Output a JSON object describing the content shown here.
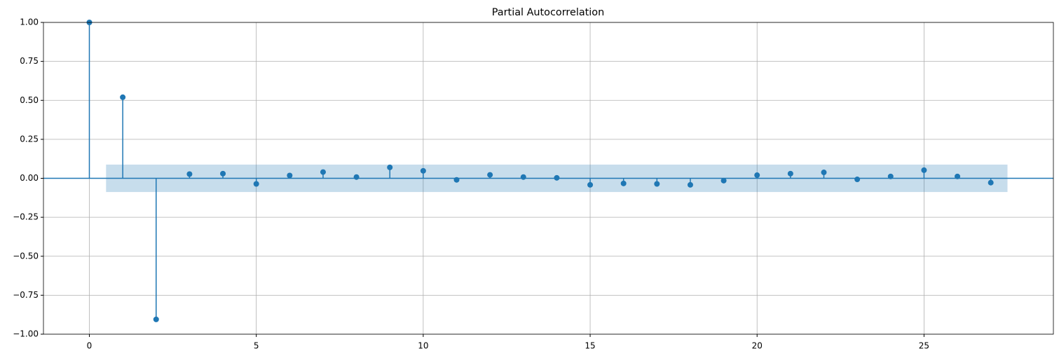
{
  "chart_data": {
    "type": "stem",
    "title": "Partial Autocorrelation",
    "x": [
      0,
      1,
      2,
      3,
      4,
      5,
      6,
      7,
      8,
      9,
      10,
      11,
      12,
      13,
      14,
      15,
      16,
      17,
      18,
      19,
      20,
      21,
      22,
      23,
      24,
      25,
      26,
      27
    ],
    "values": [
      1.0,
      0.52,
      -0.905,
      0.027,
      0.03,
      -0.036,
      0.018,
      0.04,
      0.008,
      0.07,
      0.048,
      -0.01,
      0.022,
      0.008,
      0.003,
      -0.042,
      -0.033,
      -0.036,
      -0.042,
      -0.015,
      0.02,
      0.03,
      0.038,
      -0.007,
      0.012,
      0.052,
      0.012,
      -0.028
    ],
    "color": "#1f77b4",
    "confidence_band": {
      "x": [
        0.5,
        27.5
      ],
      "upper": 0.088,
      "lower": -0.088
    },
    "xlim": [
      -1.375,
      28.875
    ],
    "ylim": [
      -1,
      1
    ],
    "xticks": [
      0,
      5,
      10,
      15,
      20,
      25
    ],
    "yticks": [
      {
        "value": -1,
        "label": "−1.00"
      },
      {
        "value": -0.75,
        "label": "−0.75"
      },
      {
        "value": -0.5,
        "label": "−0.50"
      },
      {
        "value": -0.25,
        "label": "−0.25"
      },
      {
        "value": 0,
        "label": "0.00"
      },
      {
        "value": 0.25,
        "label": "0.25"
      },
      {
        "value": 0.5,
        "label": "0.50"
      },
      {
        "value": 0.75,
        "label": "0.75"
      },
      {
        "value": 1,
        "label": "1.00"
      }
    ],
    "grid": true
  }
}
